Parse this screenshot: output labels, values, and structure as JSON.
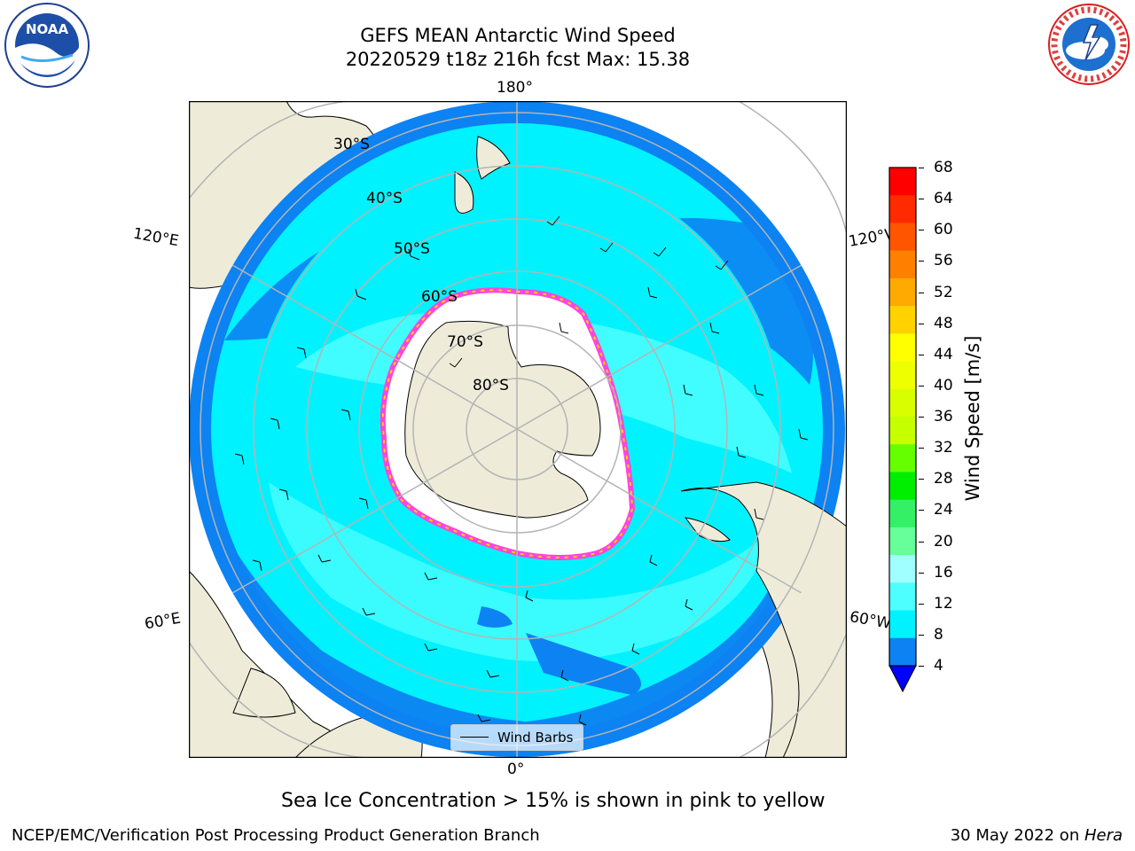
{
  "title": {
    "line1": "GEFS MEAN Antarctic Wind Speed",
    "line2": "20220529 t18z 216h fcst   Max: 15.38"
  },
  "map": {
    "longitude_labels": {
      "top": "180°",
      "upper_left": "120°E",
      "upper_right": "120°W",
      "lower_left": "60°E",
      "lower_right": "60°W",
      "bottom": "0°"
    },
    "latitude_labels": [
      "30°S",
      "40°S",
      "50°S",
      "60°S",
      "70°S",
      "80°S"
    ],
    "colors": {
      "land": "#eeecd9",
      "sea_ice": "#ffffff",
      "ice_edge": "#ff44dd",
      "ocean_low": "#0d82f2",
      "ocean_mid": "#00f2ff",
      "ocean_high": "#4dffff",
      "grid": "#b4b4b4"
    }
  },
  "legend": {
    "label": "Wind Barbs"
  },
  "colorbar": {
    "label": "Wind Speed [m/s]",
    "ticks": [
      "68",
      "64",
      "60",
      "56",
      "52",
      "48",
      "44",
      "40",
      "36",
      "32",
      "28",
      "24",
      "20",
      "16",
      "12",
      "8",
      "4"
    ],
    "colors_top_to_bottom": [
      "#ff0000",
      "#ff2a00",
      "#ff5500",
      "#ff8000",
      "#ffaa00",
      "#ffd200",
      "#ffff00",
      "#eeff00",
      "#d8ff00",
      "#c5ff00",
      "#66ff00",
      "#00ee00",
      "#33f066",
      "#66ff99",
      "#a0ffff",
      "#4dffff",
      "#00f2ff",
      "#0d82f2"
    ],
    "extend_color": "#0000ff"
  },
  "caption": "Sea Ice Concentration > 15% is shown in pink to yellow",
  "footer": {
    "left": "NCEP/EMC/Verification Post Processing Product Generation Branch",
    "right_prefix": "30 May 2022 on ",
    "right_host": "Hera"
  },
  "logos": {
    "left": {
      "icon": "noaa-logo",
      "text": "NOAA"
    },
    "right": {
      "icon": "nws-logo",
      "text": "NATIONAL WEATHER SERVICE"
    }
  }
}
